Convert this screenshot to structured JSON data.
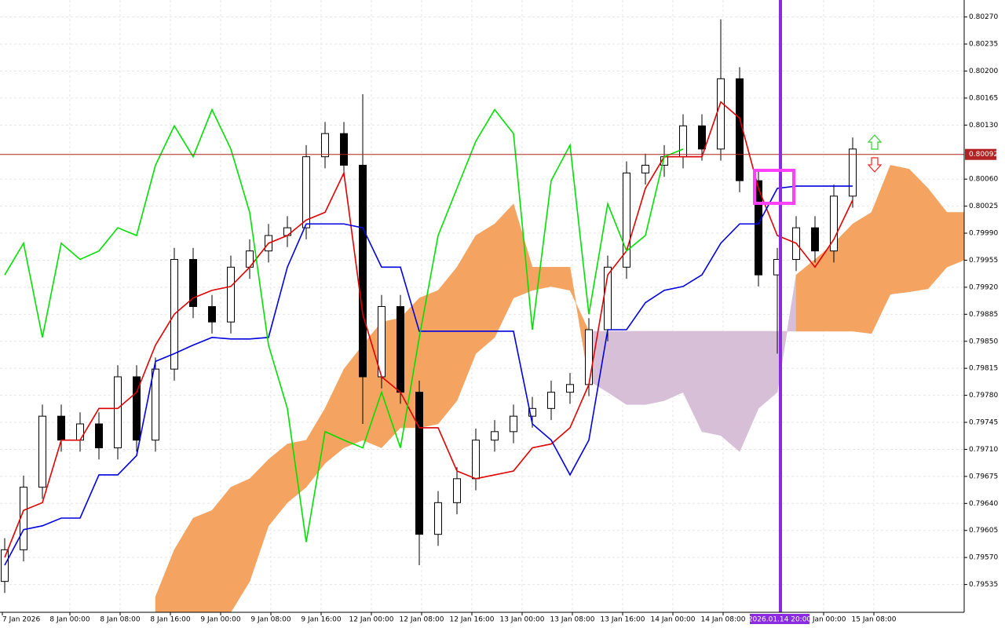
{
  "chart_data": {
    "type": "candlestick",
    "ylim": [
      0.79499,
      0.80292
    ],
    "yticks": [
      {
        "value": 0.8027,
        "label": "0.80270"
      },
      {
        "value": 0.80235,
        "label": "0.80235"
      },
      {
        "value": 0.802,
        "label": "0.80200"
      },
      {
        "value": 0.80165,
        "label": "0.80165"
      },
      {
        "value": 0.8013,
        "label": "0.80130"
      },
      {
        "value": 0.8006,
        "label": "0.80060"
      },
      {
        "value": 0.80025,
        "label": "0.80025"
      },
      {
        "value": 0.7999,
        "label": "0.79990"
      },
      {
        "value": 0.79955,
        "label": "0.79955"
      },
      {
        "value": 0.7992,
        "label": "0.79920"
      },
      {
        "value": 0.79885,
        "label": "0.79885"
      },
      {
        "value": 0.7985,
        "label": "0.79850"
      },
      {
        "value": 0.79815,
        "label": "0.79815"
      },
      {
        "value": 0.7978,
        "label": "0.79780"
      },
      {
        "value": 0.79745,
        "label": "0.79745"
      },
      {
        "value": 0.7971,
        "label": "0.79710"
      },
      {
        "value": 0.79675,
        "label": "0.79675"
      },
      {
        "value": 0.7964,
        "label": "0.79640"
      },
      {
        "value": 0.79605,
        "label": "0.79605"
      },
      {
        "value": 0.7957,
        "label": "0.79570"
      },
      {
        "value": 0.79535,
        "label": "0.79535"
      }
    ],
    "x_labels": [
      "7 Jan 2026",
      "8 Jan 00:00",
      "8 Jan 08:00",
      "8 Jan 16:00",
      "9 Jan 00:00",
      "9 Jan 08:00",
      "9 Jan 16:00",
      "12 Jan 00:00",
      "12 Jan 08:00",
      "12 Jan 16:00",
      "13 Jan 00:00",
      "13 Jan 08:00",
      "13 Jan 16:00",
      "14 Jan 00:00",
      "14 Jan 08:00",
      "15 Jan 00:00",
      "15 Jan 08:00"
    ],
    "grid": true,
    "bull_color": "#ffffff",
    "bear_color": "#000000",
    "ohlc": [
      [
        0.79539,
        0.79595,
        0.79524,
        0.7958
      ],
      [
        0.7958,
        0.79676,
        0.79565,
        0.79661
      ],
      [
        0.79661,
        0.79768,
        0.79646,
        0.79753
      ],
      [
        0.79753,
        0.79768,
        0.79707,
        0.79722
      ],
      [
        0.79722,
        0.79758,
        0.79707,
        0.79743
      ],
      [
        0.79743,
        0.79758,
        0.79697,
        0.79712
      ],
      [
        0.79712,
        0.79819,
        0.79697,
        0.79804
      ],
      [
        0.79804,
        0.79819,
        0.79707,
        0.79722
      ],
      [
        0.79722,
        0.79829,
        0.79707,
        0.79814
      ],
      [
        0.79814,
        0.79971,
        0.79799,
        0.79956
      ],
      [
        0.79956,
        0.79971,
        0.7988,
        0.79895
      ],
      [
        0.79895,
        0.7991,
        0.7986,
        0.79875
      ],
      [
        0.79875,
        0.79961,
        0.7986,
        0.79946
      ],
      [
        0.79946,
        0.79982,
        0.79931,
        0.79967
      ],
      [
        0.79967,
        0.80002,
        0.79952,
        0.79987
      ],
      [
        0.79987,
        0.80012,
        0.79972,
        0.79997
      ],
      [
        0.79997,
        0.80104,
        0.79982,
        0.80089
      ],
      [
        0.80089,
        0.80134,
        0.80074,
        0.80119
      ],
      [
        0.80119,
        0.80134,
        0.80063,
        0.80078
      ],
      [
        0.80078,
        0.8017,
        0.79743,
        0.79804
      ],
      [
        0.79804,
        0.7991,
        0.79789,
        0.79895
      ],
      [
        0.79895,
        0.7991,
        0.79769,
        0.79784
      ],
      [
        0.79784,
        0.79799,
        0.7956,
        0.796
      ],
      [
        0.796,
        0.79656,
        0.79585,
        0.79641
      ],
      [
        0.79641,
        0.79687,
        0.79626,
        0.79672
      ],
      [
        0.79672,
        0.79737,
        0.79657,
        0.79722
      ],
      [
        0.79722,
        0.79748,
        0.79707,
        0.79733
      ],
      [
        0.79733,
        0.79768,
        0.79718,
        0.79753
      ],
      [
        0.79753,
        0.79778,
        0.79738,
        0.79763
      ],
      [
        0.79763,
        0.79799,
        0.79748,
        0.79784
      ],
      [
        0.79784,
        0.79809,
        0.79769,
        0.79794
      ],
      [
        0.79794,
        0.7988,
        0.79779,
        0.79865
      ],
      [
        0.79865,
        0.79961,
        0.7985,
        0.79946
      ],
      [
        0.79946,
        0.80083,
        0.79931,
        0.80068
      ],
      [
        0.80068,
        0.80093,
        0.80053,
        0.80078
      ],
      [
        0.80078,
        0.80104,
        0.80063,
        0.80089
      ],
      [
        0.80089,
        0.80144,
        0.80074,
        0.80129
      ],
      [
        0.80129,
        0.80144,
        0.80084,
        0.80099
      ],
      [
        0.80099,
        0.80267,
        0.80084,
        0.8019
      ],
      [
        0.8019,
        0.80205,
        0.80043,
        0.80058
      ],
      [
        0.80058,
        0.80073,
        0.79921,
        0.79936
      ],
      [
        0.79936,
        0.79971,
        0.79834,
        0.79956
      ],
      [
        0.79956,
        0.80012,
        0.79941,
        0.79997
      ],
      [
        0.79997,
        0.80012,
        0.79952,
        0.79967
      ],
      [
        0.79967,
        0.80053,
        0.79952,
        0.80038
      ],
      [
        0.80038,
        0.80114,
        0.80023,
        0.80099
      ]
    ],
    "lines": [
      {
        "color": "#e00000",
        "values": [
          0.7957,
          0.79631,
          0.79641,
          0.79722,
          0.79722,
          0.79763,
          0.79763,
          0.79784,
          0.79845,
          0.79885,
          0.79906,
          0.79916,
          0.79921,
          0.79946,
          0.79977,
          0.79987,
          0.80007,
          0.80017,
          0.80068,
          0.79885,
          0.79804,
          0.79784,
          0.79738,
          0.79738,
          0.79682,
          0.79672,
          0.79677,
          0.79682,
          0.79712,
          0.79717,
          0.79738,
          0.79794,
          0.79936,
          0.79967,
          0.80048,
          0.80089,
          0.80089,
          0.80089,
          0.8016,
          0.80139,
          0.80048,
          0.79987,
          0.79977,
          0.79946,
          0.79982,
          0.80033
        ]
      },
      {
        "color": "#0000e0",
        "values": [
          0.7956,
          0.79606,
          0.79611,
          0.79621,
          0.79621,
          0.79677,
          0.79677,
          0.79702,
          0.79824,
          0.79834,
          0.79845,
          0.79855,
          0.79853,
          0.79853,
          0.79855,
          0.79946,
          0.80002,
          0.80002,
          0.80002,
          0.79997,
          0.79946,
          0.79946,
          0.79863,
          0.79863,
          0.79863,
          0.79863,
          0.79863,
          0.79863,
          0.79743,
          0.79722,
          0.79677,
          0.79722,
          0.79865,
          0.79865,
          0.799,
          0.79916,
          0.79921,
          0.79936,
          0.79977,
          0.80002,
          0.80002,
          0.80048,
          0.80051,
          0.80051,
          0.80051,
          0.80051
        ]
      },
      {
        "color": "#00e000",
        "values": [
          0.79936,
          0.79977,
          0.79855,
          0.79977,
          0.79956,
          0.79967,
          0.79997,
          0.79987,
          0.80078,
          0.80129,
          0.80089,
          0.8015,
          0.80099,
          0.80017,
          0.79845,
          0.79763,
          0.7959,
          0.79733,
          0.79722,
          0.79712,
          0.79784,
          0.79712,
          0.79855,
          0.79987,
          0.80048,
          0.80109,
          0.8015,
          0.80119,
          0.79865,
          0.80058,
          0.80104,
          0.79885,
          0.80028,
          0.79967,
          0.79987,
          0.80089,
          0.80099,
          null,
          null,
          null,
          null,
          null,
          null,
          null,
          null,
          null
        ]
      }
    ],
    "cloud": {
      "up_color": "#f4a460",
      "down_color": "#d8bfd8",
      "senkou_a": [
        null,
        null,
        null,
        null,
        null,
        null,
        null,
        null,
        0.79519,
        0.7958,
        0.79621,
        0.79631,
        0.79661,
        0.79672,
        0.79697,
        0.79717,
        0.79722,
        0.79763,
        0.79814,
        0.79845,
        0.79875,
        0.7988,
        0.79906,
        0.79916,
        0.79946,
        0.79987,
        0.80002,
        0.80028,
        0.79946,
        0.79946,
        0.79946,
        0.79799,
        0.79784,
        0.79768,
        0.79768,
        0.79773,
        0.79784,
        0.79733,
        0.79728,
        0.79707,
        0.79763,
        0.79784,
        0.79936,
        0.79956,
        0.79977,
        0.80002,
        0.80017,
        0.80078,
        0.80073,
        0.80048,
        0.80017,
        0.80017
      ],
      "senkou_b": [
        null,
        null,
        null,
        null,
        null,
        null,
        null,
        null,
        0.79499,
        0.79499,
        0.79499,
        0.79499,
        0.79499,
        0.79539,
        0.79611,
        0.79641,
        0.79661,
        0.79692,
        0.79712,
        0.79722,
        0.79712,
        0.79738,
        0.79738,
        0.79743,
        0.79773,
        0.79834,
        0.79855,
        0.79906,
        0.79916,
        0.79921,
        0.79916,
        0.79863,
        0.79863,
        0.79863,
        0.79863,
        0.79863,
        0.79863,
        0.79863,
        0.79863,
        0.79863,
        0.79863,
        0.79863,
        0.79863,
        0.79863,
        0.79863,
        0.79863,
        0.7986,
        0.79911,
        0.79914,
        0.79918,
        0.79946,
        0.79956
      ]
    },
    "current_price": {
      "value": 0.80092,
      "label": "0.80092"
    },
    "cursor_time_label": "2026.01.14 20:00"
  }
}
